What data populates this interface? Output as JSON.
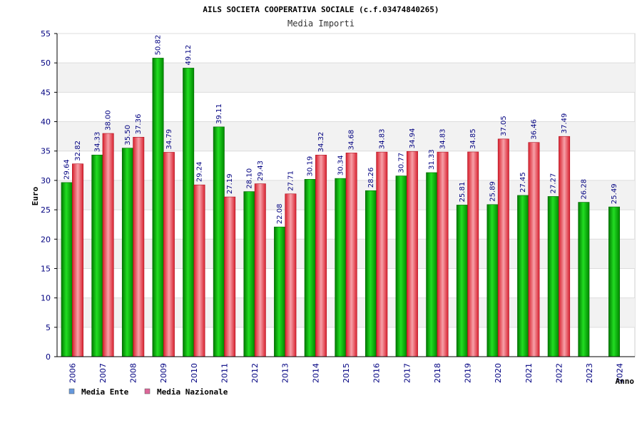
{
  "chart_data": {
    "type": "bar",
    "title": "AILS SOCIETA COOPERATIVA SOCIALE (c.f.03474840265)",
    "subtitle": "Media Importi",
    "xlabel": "Anno",
    "ylabel": "Euro",
    "ylim": [
      0,
      55
    ],
    "yticks": [
      "0",
      "5",
      "10",
      "15",
      "20",
      "25",
      "30",
      "35",
      "40",
      "45",
      "50",
      "55"
    ],
    "categories": [
      "2006",
      "2007",
      "2008",
      "2009",
      "2010",
      "2011",
      "2012",
      "2013",
      "2014",
      "2015",
      "2016",
      "2017",
      "2018",
      "2019",
      "2020",
      "2021",
      "2022",
      "2023",
      "2024"
    ],
    "series": [
      {
        "name": "Media Ente",
        "color": "#00b000",
        "legend_color": "#6699dd",
        "values": [
          29.64,
          34.33,
          35.5,
          50.82,
          49.12,
          39.11,
          28.1,
          22.08,
          30.19,
          30.34,
          28.26,
          30.77,
          31.33,
          25.81,
          25.89,
          27.45,
          27.27,
          26.28,
          25.49
        ],
        "labels": [
          "29.64",
          "34.33",
          "35.50",
          "50.82",
          "49.12",
          "39.11",
          "28.10",
          "22.08",
          "30.19",
          "30.34",
          "28.26",
          "30.77",
          "31.33",
          "25.81",
          "25.89",
          "27.45",
          "27.27",
          "26.28",
          "25.49"
        ]
      },
      {
        "name": "Media Nazionale",
        "color": "#e8303a",
        "legend_color": "#dd6699",
        "values": [
          32.82,
          38.0,
          37.36,
          34.79,
          29.24,
          27.19,
          29.43,
          27.71,
          34.32,
          34.68,
          34.83,
          34.94,
          34.83,
          34.85,
          37.05,
          36.46,
          37.49,
          null,
          null
        ],
        "labels": [
          "32.82",
          "38.00",
          "37.36",
          "34.79",
          "29.24",
          "27.19",
          "29.43",
          "27.71",
          "34.32",
          "34.68",
          "34.83",
          "34.94",
          "34.83",
          "34.85",
          "37.05",
          "36.46",
          "37.49",
          null,
          null
        ]
      }
    ],
    "legend": [
      "Media Ente",
      "Media Nazionale"
    ],
    "legend_position": "bottom-left",
    "grid": true
  }
}
